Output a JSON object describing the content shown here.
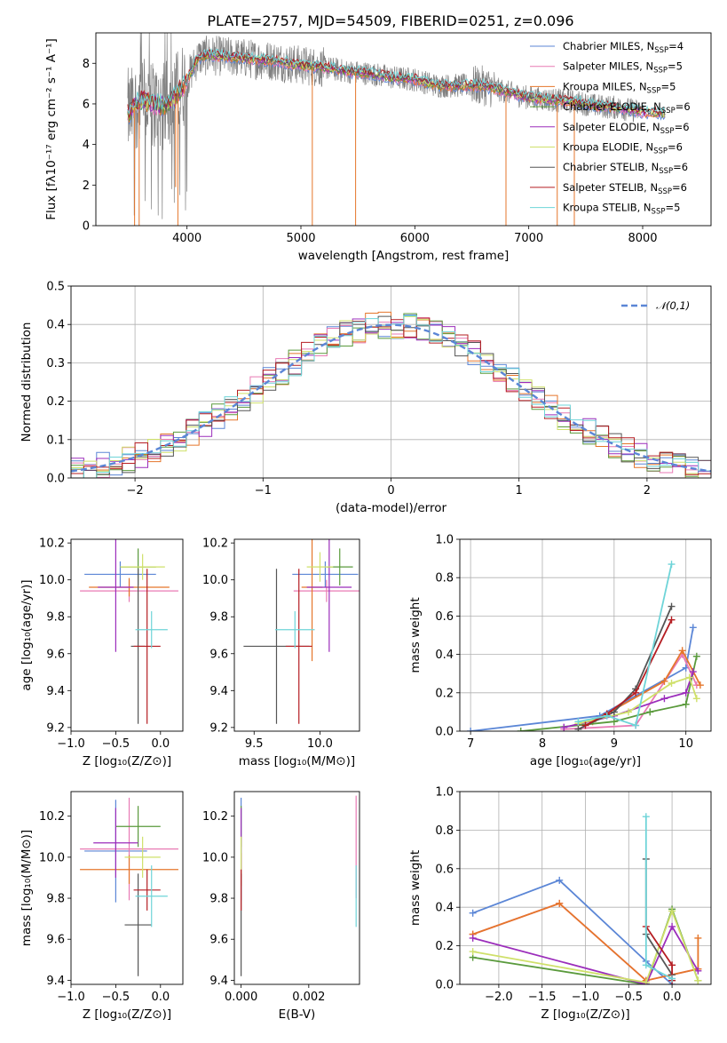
{
  "figure": {
    "title": "PLATE=2757, MJD=54509, FIBERID=0251, z=0.096"
  },
  "colors": {
    "Chabrier MILES": "#5b86d6",
    "Salpeter MILES": "#e87ab4",
    "Kroupa MILES": "#e5762b",
    "Chabrier ELODIE": "#5a9a3c",
    "Salpeter ELODIE": "#9b2dbb",
    "Kroupa ELODIE": "#cfe06a",
    "Chabrier STELIB": "#555555",
    "Salpeter STELIB": "#b51d22",
    "Kroupa STELIB": "#6ed4d8",
    "data": "#808080",
    "normal": "#5b86d6"
  },
  "chart_data": [
    {
      "id": "spectrum",
      "type": "line",
      "xlabel": "wavelength [Angstrom, rest frame]",
      "ylabel": "Flux [fλ10⁻¹⁷ erg cm⁻² s⁻¹ A⁻¹]",
      "xlim": [
        3200,
        8600
      ],
      "ylim": [
        0,
        9.5
      ],
      "xticks": [
        4000,
        5000,
        6000,
        7000,
        8000
      ],
      "yticks": [
        0,
        2,
        4,
        6,
        8
      ],
      "grid": false,
      "legend_position": "right",
      "continuum_x": [
        3500,
        3600,
        3700,
        3800,
        3900,
        4000,
        4100,
        4200,
        4400,
        4600,
        4800,
        5000,
        5200,
        5400,
        5600,
        5800,
        6000,
        6200,
        6400,
        6600,
        6800,
        7000,
        7200,
        7400,
        7600,
        7800,
        8000,
        8200,
        8400,
        8600
      ],
      "continuum_y": [
        5.6,
        6.2,
        6.0,
        5.9,
        6.4,
        7.2,
        8.3,
        8.4,
        8.3,
        8.2,
        8.1,
        7.9,
        7.8,
        7.6,
        7.5,
        7.3,
        7.2,
        6.9,
        6.9,
        6.9,
        6.6,
        6.3,
        6.2,
        6.1,
        5.9,
        5.8,
        5.6,
        5.5,
        5.4,
        5.3
      ],
      "spikes": [
        [
          3540,
          0
        ],
        [
          3580,
          0
        ],
        [
          3900,
          1.9
        ],
        [
          3920,
          0
        ],
        [
          5100,
          0
        ],
        [
          5480,
          0
        ],
        [
          6800,
          0
        ],
        [
          7250,
          0
        ],
        [
          7400,
          0
        ]
      ],
      "legend": [
        {
          "label": "Chabrier MILES, N",
          "sub": "SSP",
          "eq": "=4"
        },
        {
          "label": "Salpeter MILES, N",
          "sub": "SSP",
          "eq": "=5"
        },
        {
          "label": "Kroupa MILES, N",
          "sub": "SSP",
          "eq": "=5"
        },
        {
          "label": "Chabrier ELODIE, N",
          "sub": "SSP",
          "eq": "=6"
        },
        {
          "label": "Salpeter ELODIE, N",
          "sub": "SSP",
          "eq": "=6"
        },
        {
          "label": "Kroupa ELODIE, N",
          "sub": "SSP",
          "eq": "=6"
        },
        {
          "label": "Chabrier STELIB, N",
          "sub": "SSP",
          "eq": "=6"
        },
        {
          "label": "Salpeter STELIB, N",
          "sub": "SSP",
          "eq": "=6"
        },
        {
          "label": "Kroupa STELIB, N",
          "sub": "SSP",
          "eq": "=5"
        }
      ]
    },
    {
      "id": "residuals",
      "type": "line",
      "xlabel": "(data-model)/error",
      "ylabel": "Normed distribution",
      "xlim": [
        -2.5,
        2.5
      ],
      "ylim": [
        0,
        0.5
      ],
      "xticks": [
        -2,
        -1,
        0,
        1,
        2
      ],
      "yticks": [
        0.0,
        0.1,
        0.2,
        0.3,
        0.4,
        0.5
      ],
      "grid": true,
      "legend_position": "top-right",
      "normal_label": "𝒩(0,1)",
      "bin_width": 0.1
    },
    {
      "id": "age_vs_Z",
      "type": "scatter",
      "xlabel": "Z [log₁₀(Z/Z⊙)]",
      "ylabel": "age  [log₁₀(age/yr)]",
      "xlim": [
        -1.0,
        0.25
      ],
      "ylim": [
        9.18,
        10.22
      ],
      "xticks": [
        -1.0,
        -0.5,
        0.0
      ],
      "yticks": [
        9.2,
        9.4,
        9.6,
        9.8,
        10.0,
        10.2
      ],
      "points": [
        {
          "m": "Chabrier MILES",
          "x": -0.45,
          "y": 10.03,
          "xe": 0.4,
          "ye": 0.07
        },
        {
          "m": "Salpeter MILES",
          "x": -0.35,
          "y": 9.94,
          "xe": 0.55,
          "ye": 0.06
        },
        {
          "m": "Kroupa MILES",
          "x": -0.35,
          "y": 9.96,
          "xe": 0.45,
          "ye": 0.05
        },
        {
          "m": "Chabrier ELODIE",
          "x": -0.25,
          "y": 10.07,
          "xe": 0.2,
          "ye": 0.1
        },
        {
          "m": "Salpeter ELODIE",
          "x": -0.5,
          "y": 9.96,
          "xe": 0.2,
          "ye": 0.35
        },
        {
          "m": "Kroupa ELODIE",
          "x": -0.2,
          "y": 10.07,
          "xe": 0.25,
          "ye": 0.07
        },
        {
          "m": "Chabrier STELIB",
          "x": -0.25,
          "y": 9.64,
          "xe": 0.08,
          "ye": 0.42
        },
        {
          "m": "Salpeter STELIB",
          "x": -0.15,
          "y": 9.64,
          "xe": 0.15,
          "ye": 0.42
        },
        {
          "m": "Kroupa STELIB",
          "x": -0.1,
          "y": 9.73,
          "xe": 0.18,
          "ye": 0.1
        }
      ]
    },
    {
      "id": "age_vs_mass",
      "type": "scatter",
      "xlabel": "mass [log₁₀(M/M⊙)]",
      "ylabel": "",
      "xlim": [
        9.35,
        10.3
      ],
      "ylim": [
        9.18,
        10.22
      ],
      "xticks": [
        9.5,
        10.0
      ],
      "yticks": [
        9.2,
        9.4,
        9.6,
        9.8,
        10.0,
        10.2
      ],
      "points": [
        {
          "m": "Chabrier MILES",
          "x": 10.04,
          "y": 10.03,
          "xe": 0.25,
          "ye": 0.07
        },
        {
          "m": "Salpeter MILES",
          "x": 10.05,
          "y": 9.94,
          "xe": 0.25,
          "ye": 0.06
        },
        {
          "m": "Kroupa MILES",
          "x": 9.94,
          "y": 9.96,
          "xe": 0.08,
          "ye": 0.4
        },
        {
          "m": "Chabrier ELODIE",
          "x": 10.15,
          "y": 10.07,
          "xe": 0.1,
          "ye": 0.1
        },
        {
          "m": "Salpeter ELODIE",
          "x": 10.07,
          "y": 9.96,
          "xe": 0.17,
          "ye": 0.35
        },
        {
          "m": "Kroupa ELODIE",
          "x": 10.0,
          "y": 10.07,
          "xe": 0.1,
          "ye": 0.08
        },
        {
          "m": "Chabrier STELIB",
          "x": 9.67,
          "y": 9.64,
          "xe": 0.25,
          "ye": 0.42
        },
        {
          "m": "Salpeter STELIB",
          "x": 9.84,
          "y": 9.64,
          "xe": 0.1,
          "ye": 0.42
        },
        {
          "m": "Kroupa STELIB",
          "x": 9.81,
          "y": 9.73,
          "xe": 0.15,
          "ye": 0.1
        }
      ]
    },
    {
      "id": "weight_vs_age",
      "type": "line",
      "xlabel": "age  [log₁₀(age/yr)]",
      "ylabel": "mass weight",
      "xlim": [
        6.85,
        10.35
      ],
      "ylim": [
        0,
        1.0
      ],
      "xticks": [
        7,
        8,
        9,
        10
      ],
      "yticks": [
        0.0,
        0.2,
        0.4,
        0.6,
        0.8,
        1.0
      ],
      "grid": true,
      "series": [
        {
          "m": "Chabrier MILES",
          "x": [
            7.0,
            8.8,
            10.0,
            10.1
          ],
          "y": [
            0.0,
            0.08,
            0.33,
            0.54
          ]
        },
        {
          "m": "Salpeter MILES",
          "x": [
            8.3,
            9.3,
            9.95,
            10.15
          ],
          "y": [
            0.01,
            0.03,
            0.4,
            0.24
          ]
        },
        {
          "m": "Kroupa MILES",
          "x": [
            8.7,
            9.7,
            9.95,
            10.2
          ],
          "y": [
            0.05,
            0.26,
            0.42,
            0.24
          ]
        },
        {
          "m": "Chabrier ELODIE",
          "x": [
            7.7,
            9.0,
            9.5,
            10.0,
            10.15
          ],
          "y": [
            0.0,
            0.05,
            0.1,
            0.14,
            0.39
          ]
        },
        {
          "m": "Salpeter ELODIE",
          "x": [
            8.3,
            9.0,
            9.7,
            10.0,
            10.1
          ],
          "y": [
            0.02,
            0.08,
            0.17,
            0.2,
            0.31
          ]
        },
        {
          "m": "Kroupa ELODIE",
          "x": [
            8.5,
            9.2,
            9.8,
            10.05,
            10.15
          ],
          "y": [
            0.04,
            0.1,
            0.25,
            0.28,
            0.17
          ]
        },
        {
          "m": "Chabrier STELIB",
          "x": [
            8.5,
            9.0,
            9.3,
            9.8
          ],
          "y": [
            0.01,
            0.1,
            0.22,
            0.65
          ]
        },
        {
          "m": "Salpeter STELIB",
          "x": [
            8.6,
            8.9,
            9.3,
            9.8
          ],
          "y": [
            0.03,
            0.09,
            0.2,
            0.58
          ]
        },
        {
          "m": "Kroupa STELIB",
          "x": [
            8.5,
            8.9,
            9.3,
            9.8
          ],
          "y": [
            0.05,
            0.08,
            0.03,
            0.87
          ]
        }
      ]
    },
    {
      "id": "mass_vs_Z",
      "type": "scatter",
      "xlabel": "Z [log₁₀(Z/Z⊙)]",
      "ylabel": "mass [log₁₀(M/M⊙)]",
      "xlim": [
        -1.0,
        0.25
      ],
      "ylim": [
        9.38,
        10.32
      ],
      "xticks": [
        -1.0,
        -0.5,
        0.0
      ],
      "yticks": [
        9.4,
        9.6,
        9.8,
        10.0,
        10.2
      ],
      "points": [
        {
          "m": "Chabrier MILES",
          "x": -0.5,
          "y": 10.03,
          "xe": 0.35,
          "ye": 0.25
        },
        {
          "m": "Salpeter MILES",
          "x": -0.35,
          "y": 10.04,
          "xe": 0.55,
          "ye": 0.25
        },
        {
          "m": "Kroupa MILES",
          "x": -0.35,
          "y": 9.94,
          "xe": 0.55,
          "ye": 0.07
        },
        {
          "m": "Chabrier ELODIE",
          "x": -0.25,
          "y": 10.15,
          "xe": 0.25,
          "ye": 0.1
        },
        {
          "m": "Salpeter ELODIE",
          "x": -0.5,
          "y": 10.07,
          "xe": 0.25,
          "ye": 0.17
        },
        {
          "m": "Kroupa ELODIE",
          "x": -0.2,
          "y": 10.0,
          "xe": 0.2,
          "ye": 0.1
        },
        {
          "m": "Chabrier STELIB",
          "x": -0.25,
          "y": 9.67,
          "xe": 0.15,
          "ye": 0.25
        },
        {
          "m": "Salpeter STELIB",
          "x": -0.15,
          "y": 9.84,
          "xe": 0.15,
          "ye": 0.1
        },
        {
          "m": "Kroupa STELIB",
          "x": -0.1,
          "y": 9.81,
          "xe": 0.18,
          "ye": 0.15
        }
      ]
    },
    {
      "id": "mass_vs_ebv",
      "type": "scatter",
      "xlabel": "E(B-V)",
      "ylabel": "",
      "xlim": [
        -0.0002,
        0.0035
      ],
      "ylim": [
        9.38,
        10.32
      ],
      "xticks": [
        0.0,
        0.002
      ],
      "xtick_labels": [
        "0.000",
        "0.002"
      ],
      "yticks": [
        9.4,
        9.6,
        9.8,
        10.0,
        10.2
      ],
      "points": [
        {
          "m": "Chabrier MILES",
          "x": 0.0,
          "y": 10.04,
          "ye": 0.25
        },
        {
          "m": "Salpeter MILES",
          "x": 0.0034,
          "y": 10.05,
          "ye": 0.25
        },
        {
          "m": "Kroupa MILES",
          "x": 0.0,
          "y": 9.94,
          "ye": 0.08
        },
        {
          "m": "Chabrier ELODIE",
          "x": 0.0,
          "y": 10.15,
          "ye": 0.1
        },
        {
          "m": "Salpeter ELODIE",
          "x": 0.0,
          "y": 10.07,
          "ye": 0.17
        },
        {
          "m": "Kroupa ELODIE",
          "x": 0.0,
          "y": 10.0,
          "ye": 0.1
        },
        {
          "m": "Chabrier STELIB",
          "x": 0.0,
          "y": 9.67,
          "ye": 0.25
        },
        {
          "m": "Salpeter STELIB",
          "x": 0.0,
          "y": 9.84,
          "ye": 0.1
        },
        {
          "m": "Kroupa STELIB",
          "x": 0.0034,
          "y": 9.81,
          "ye": 0.15
        }
      ]
    },
    {
      "id": "weight_vs_Z",
      "type": "line",
      "xlabel": "Z [log₁₀(Z/Z⊙)]",
      "ylabel": "mass weight",
      "xlim": [
        -2.45,
        0.45
      ],
      "ylim": [
        0,
        1.0
      ],
      "xticks": [
        -2.0,
        -1.5,
        -1.0,
        -0.5,
        0.0
      ],
      "yticks": [
        0.0,
        0.2,
        0.4,
        0.6,
        0.8,
        1.0
      ],
      "grid": true,
      "series": [
        {
          "m": "Chabrier MILES",
          "x": [
            -2.3,
            -1.3,
            -0.3,
            0.0
          ],
          "y": [
            0.37,
            0.54,
            0.12,
            0.0
          ]
        },
        {
          "m": "Salpeter MILES",
          "x": [
            -2.3,
            -1.3,
            -0.3,
            0.3
          ],
          "y": [
            0.26,
            0.42,
            0.02,
            0.08
          ]
        },
        {
          "m": "Kroupa MILES",
          "x": [
            -2.3,
            -1.3,
            -0.3,
            0.3,
            0.3
          ],
          "y": [
            0.26,
            0.42,
            0.02,
            0.08,
            0.24
          ]
        },
        {
          "m": "Chabrier ELODIE",
          "x": [
            -2.3,
            -0.3,
            0.0,
            0.3
          ],
          "y": [
            0.14,
            0.0,
            0.39,
            0.02
          ]
        },
        {
          "m": "Salpeter ELODIE",
          "x": [
            -2.3,
            -0.3,
            0.0,
            0.3
          ],
          "y": [
            0.24,
            0.0,
            0.3,
            0.07
          ]
        },
        {
          "m": "Kroupa ELODIE",
          "x": [
            -2.3,
            -0.3,
            0.0,
            0.3
          ],
          "y": [
            0.17,
            0.01,
            0.38,
            0.02
          ]
        },
        {
          "m": "Chabrier STELIB",
          "x": [
            -0.3,
            -0.3,
            0.0
          ],
          "y": [
            0.65,
            0.26,
            0.05
          ]
        },
        {
          "m": "Salpeter STELIB",
          "x": [
            -0.3,
            0.0,
            0.0
          ],
          "y": [
            0.3,
            0.1,
            0.02
          ]
        },
        {
          "m": "Kroupa STELIB",
          "x": [
            -0.3,
            -0.3,
            0.0
          ],
          "y": [
            0.87,
            0.1,
            0.03
          ]
        }
      ]
    }
  ]
}
